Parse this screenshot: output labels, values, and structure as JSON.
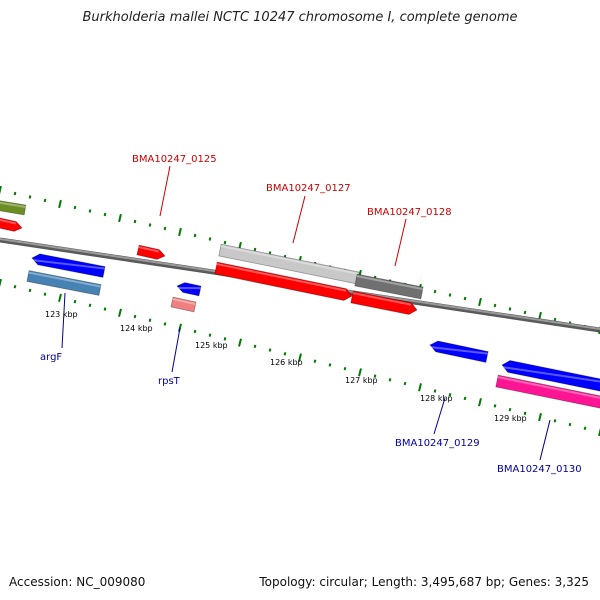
{
  "title": "Burkholderia mallei NCTC 10247 chromosome I, complete genome",
  "footer": {
    "accession": "Accession: NC_009080",
    "summary": "Topology: circular; Length: 3,495,687 bp; Genes: 3,325"
  },
  "colors": {
    "backbone": "#808080",
    "tick": "#007a00",
    "red_label": "#cc0000",
    "blue_label": "#000099"
  },
  "kbp_labels": [
    {
      "text": "123 kbp"
    },
    {
      "text": "124 kbp"
    },
    {
      "text": "125 kbp"
    },
    {
      "text": "126 kbp"
    },
    {
      "text": "127 kbp"
    },
    {
      "text": "128 kbp"
    },
    {
      "text": "129 kbp"
    }
  ],
  "gene_labels": [
    {
      "text": "BMA10247_0125",
      "color": "red"
    },
    {
      "text": "BMA10247_0127",
      "color": "red"
    },
    {
      "text": "BMA10247_0128",
      "color": "red"
    },
    {
      "text": "argF",
      "color": "blue"
    },
    {
      "text": "rpsT",
      "color": "blue"
    },
    {
      "text": "BMA10247_0129",
      "color": "blue"
    },
    {
      "text": "BMA10247_0130",
      "color": "blue"
    }
  ],
  "features": [
    {
      "name": "olive-feature",
      "color": "#6b8e23"
    },
    {
      "name": "red-feature-left",
      "color": "#ff0000"
    },
    {
      "name": "blue-feature-argF-upper",
      "color": "#0000ff"
    },
    {
      "name": "steelblue-feature-argF",
      "color": "#4682b4"
    },
    {
      "name": "red-feature-0125",
      "color": "#ff0000"
    },
    {
      "name": "blue-feature-small",
      "color": "#0000ff"
    },
    {
      "name": "pink-feature-rpsT",
      "color": "#f08080"
    },
    {
      "name": "grey-feature-0127",
      "color": "#c8c8c8"
    },
    {
      "name": "red-feature-0127",
      "color": "#ff0000"
    },
    {
      "name": "darkgrey-feature-0128",
      "color": "#707070"
    },
    {
      "name": "red-feature-0128",
      "color": "#ff0000"
    },
    {
      "name": "blue-feature-0129",
      "color": "#0000ff"
    },
    {
      "name": "blue-feature-right",
      "color": "#0000ff"
    },
    {
      "name": "magenta-feature-0130",
      "color": "#ff1493"
    }
  ]
}
